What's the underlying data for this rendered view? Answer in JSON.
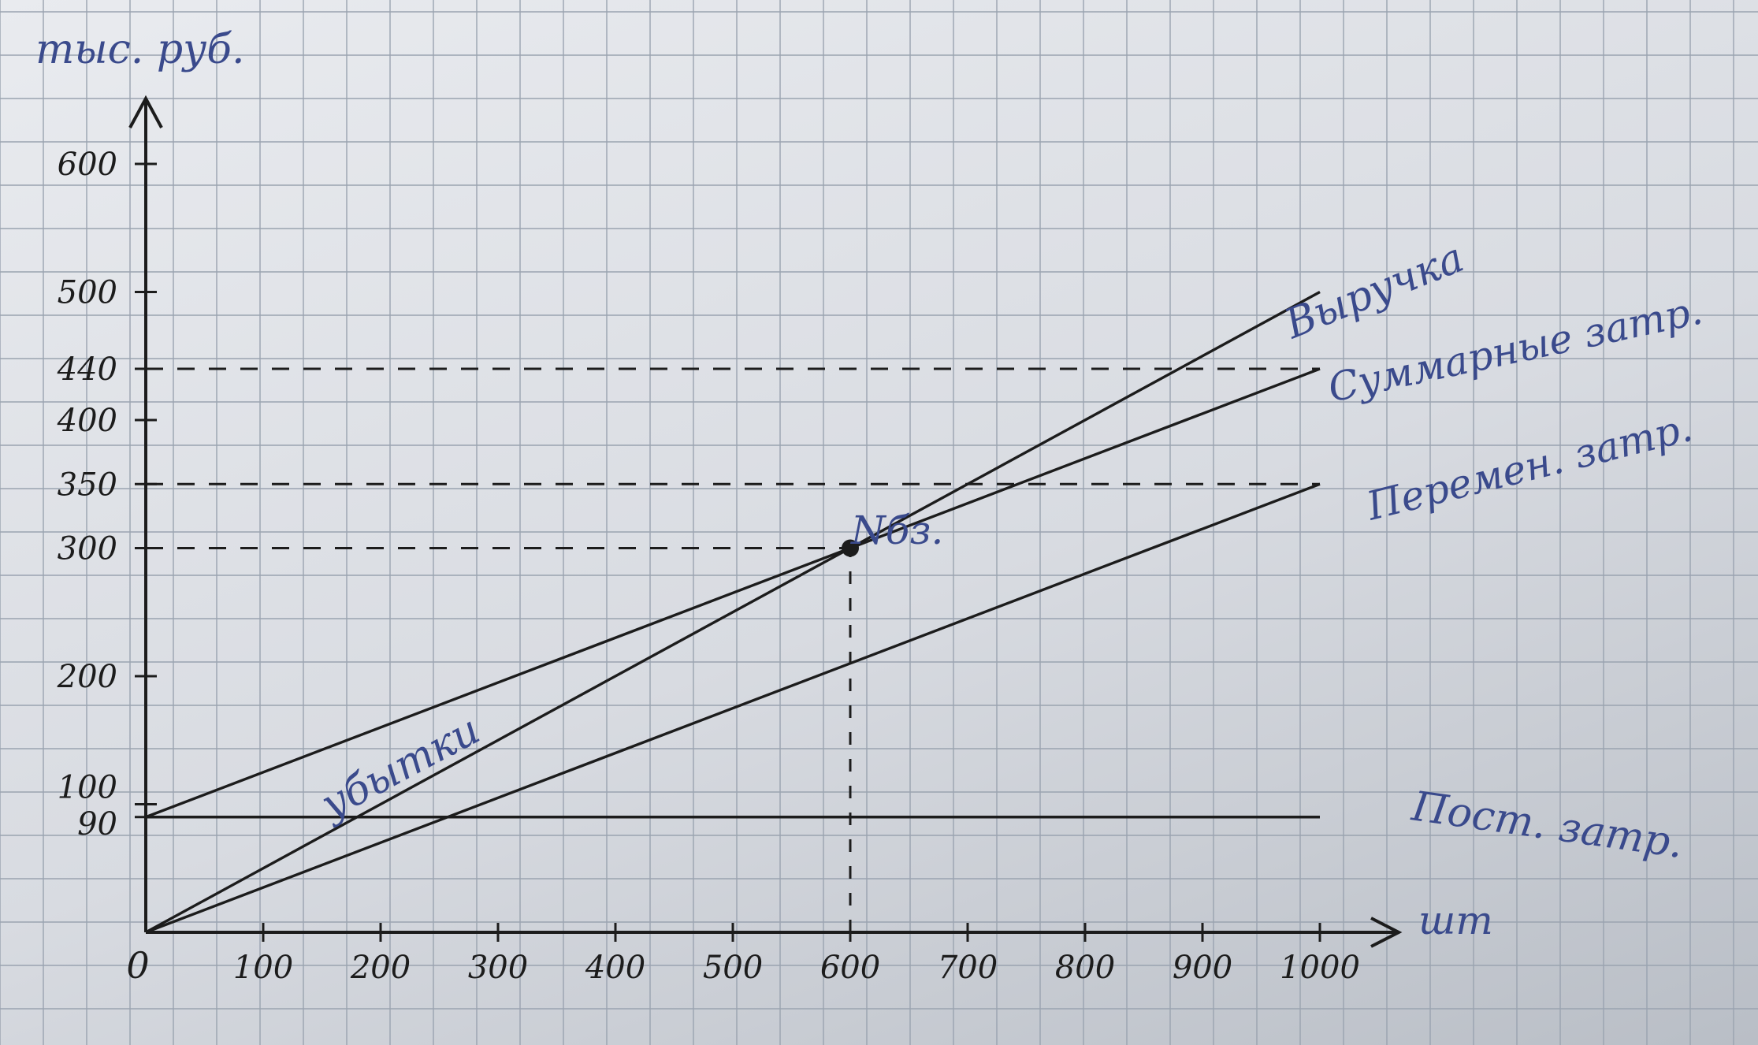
{
  "chart_data": {
    "type": "line",
    "ylabel": "тыс. руб.",
    "xlabel": "шт",
    "x_ticks": [
      0,
      100,
      200,
      300,
      400,
      500,
      600,
      700,
      800,
      900,
      1000
    ],
    "x_tick_labels": [
      "0",
      "100",
      "200",
      "300",
      "400",
      "500",
      "600",
      "700",
      "800",
      "900",
      "1000"
    ],
    "y_ticks": [
      90,
      100,
      200,
      300,
      350,
      400,
      440,
      500,
      600
    ],
    "y_tick_labels": [
      "90",
      "100",
      "200",
      "300",
      "350",
      "400",
      "440",
      "500",
      "600"
    ],
    "xlim": [
      0,
      1050
    ],
    "ylim": [
      0,
      650
    ],
    "grid": true,
    "series": [
      {
        "name": "Выручка",
        "x": [
          0,
          1000
        ],
        "y": [
          0,
          500
        ],
        "color": "#1c1c1c"
      },
      {
        "name": "Суммарные затр.",
        "x": [
          0,
          1000
        ],
        "y": [
          90,
          440
        ],
        "color": "#1c1c1c"
      },
      {
        "name": "Перемен. затр.",
        "x": [
          0,
          1000
        ],
        "y": [
          0,
          350
        ],
        "color": "#1c1c1c"
      },
      {
        "name": "Пост. затр.",
        "x": [
          0,
          1000
        ],
        "y": [
          90,
          90
        ],
        "color": "#1c1c1c"
      }
    ],
    "reference_lines": [
      {
        "y": 440,
        "x_to": 1000
      },
      {
        "y": 350,
        "x_to": 1000
      },
      {
        "y": 300,
        "x_to": 600
      },
      {
        "x": 600,
        "y_to": 300
      }
    ],
    "annotations": {
      "break_even_label": "Nбз.",
      "break_even_point": {
        "x": 600,
        "y": 300
      },
      "loss_zone_label": "убытки"
    }
  },
  "colors": {
    "ink": "#1c1c1c",
    "blue_ink": "#3a4a8c",
    "grid": "#9aa3b0",
    "paper": "#e4e6ea"
  }
}
